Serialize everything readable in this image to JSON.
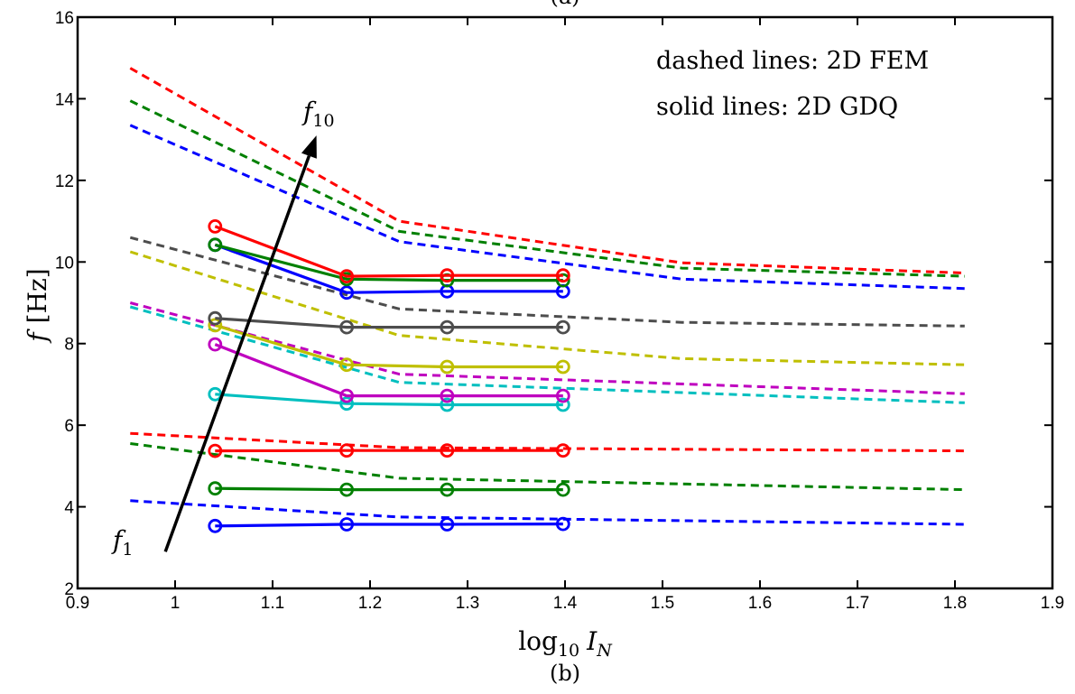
{
  "chart_data": {
    "type": "line",
    "top_label": "(a)",
    "caption": "(b)",
    "xlabel": {
      "base": "log",
      "sub": "10",
      "var": "I",
      "var_sub": "N"
    },
    "ylabel": {
      "var": "f",
      "unit": "[Hz]"
    },
    "xlim": [
      0.9,
      1.9
    ],
    "ylim": [
      2,
      16
    ],
    "xticks": [
      "0.9",
      "1",
      "1.1",
      "1.2",
      "1.3",
      "1.4",
      "1.5",
      "1.6",
      "1.7",
      "1.8",
      "1.9"
    ],
    "yticks": [
      "2",
      "4",
      "6",
      "8",
      "10",
      "12",
      "14",
      "16"
    ],
    "annotations": {
      "line1": "dashed lines: 2D FEM",
      "line2": "solid lines: 2D GDQ",
      "arrow_start_label": {
        "var": "f",
        "sub": "1"
      },
      "arrow_end_label": {
        "var": "f",
        "sub": "10"
      },
      "arrow": {
        "from": [
          0.99,
          2.9
        ],
        "to": [
          1.145,
          13.1
        ]
      }
    },
    "series": [
      {
        "style": "dashed",
        "color": "#0000ff",
        "x": [
          0.954,
          1.23,
          1.81
        ],
        "y": [
          4.15,
          3.75,
          3.57
        ]
      },
      {
        "style": "dashed",
        "color": "#008000",
        "x": [
          0.954,
          1.23,
          1.81
        ],
        "y": [
          5.55,
          4.7,
          4.42
        ]
      },
      {
        "style": "dashed",
        "color": "#ff0000",
        "x": [
          0.954,
          1.23,
          1.81
        ],
        "y": [
          5.8,
          5.45,
          5.37
        ]
      },
      {
        "style": "dashed",
        "color": "#00bfbf",
        "x": [
          0.954,
          1.23,
          1.81
        ],
        "y": [
          8.9,
          7.05,
          6.55
        ]
      },
      {
        "style": "dashed",
        "color": "#bf00bf",
        "x": [
          0.954,
          1.23,
          1.81
        ],
        "y": [
          9.0,
          7.25,
          6.77
        ]
      },
      {
        "style": "dashed",
        "color": "#bfbf00",
        "x": [
          0.954,
          1.23,
          1.52,
          1.81
        ],
        "y": [
          10.25,
          8.2,
          7.63,
          7.48
        ]
      },
      {
        "style": "dashed",
        "color": "#4d4d4d",
        "x": [
          0.954,
          1.23,
          1.52,
          1.81
        ],
        "y": [
          10.6,
          8.85,
          8.52,
          8.43
        ]
      },
      {
        "style": "dashed",
        "color": "#0000ff",
        "x": [
          0.954,
          1.23,
          1.52,
          1.81
        ],
        "y": [
          13.35,
          10.5,
          9.58,
          9.35
        ]
      },
      {
        "style": "dashed",
        "color": "#008000",
        "x": [
          0.954,
          1.23,
          1.52,
          1.81
        ],
        "y": [
          13.95,
          10.75,
          9.85,
          9.65
        ]
      },
      {
        "style": "dashed",
        "color": "#ff0000",
        "x": [
          0.954,
          1.23,
          1.52,
          1.81
        ],
        "y": [
          14.75,
          11.0,
          9.98,
          9.73
        ]
      },
      {
        "style": "solid",
        "color": "#0000ff",
        "x": [
          1.041,
          1.176,
          1.279,
          1.398
        ],
        "y": [
          3.53,
          3.57,
          3.57,
          3.58
        ]
      },
      {
        "style": "solid",
        "color": "#008000",
        "x": [
          1.041,
          1.176,
          1.279,
          1.398
        ],
        "y": [
          4.45,
          4.42,
          4.42,
          4.42
        ]
      },
      {
        "style": "solid",
        "color": "#ff0000",
        "x": [
          1.041,
          1.176,
          1.279,
          1.398
        ],
        "y": [
          5.37,
          5.38,
          5.38,
          5.38
        ]
      },
      {
        "style": "solid",
        "color": "#00bfbf",
        "x": [
          1.041,
          1.176,
          1.279,
          1.398
        ],
        "y": [
          6.76,
          6.53,
          6.5,
          6.5
        ]
      },
      {
        "style": "solid",
        "color": "#bf00bf",
        "x": [
          1.041,
          1.176,
          1.279,
          1.398
        ],
        "y": [
          7.98,
          6.72,
          6.72,
          6.72
        ]
      },
      {
        "style": "solid",
        "color": "#bfbf00",
        "x": [
          1.041,
          1.176,
          1.279,
          1.398
        ],
        "y": [
          8.45,
          7.48,
          7.43,
          7.43
        ]
      },
      {
        "style": "solid",
        "color": "#4d4d4d",
        "x": [
          1.041,
          1.176,
          1.279,
          1.398
        ],
        "y": [
          8.62,
          8.4,
          8.4,
          8.4
        ]
      },
      {
        "style": "solid",
        "color": "#0000ff",
        "x": [
          1.041,
          1.176,
          1.279,
          1.398
        ],
        "y": [
          10.42,
          9.25,
          9.28,
          9.28
        ]
      },
      {
        "style": "solid",
        "color": "#008000",
        "x": [
          1.041,
          1.176,
          1.279,
          1.398
        ],
        "y": [
          10.42,
          9.58,
          9.55,
          9.55
        ]
      },
      {
        "style": "solid",
        "color": "#ff0000",
        "x": [
          1.041,
          1.176,
          1.279,
          1.398
        ],
        "y": [
          10.87,
          9.65,
          9.67,
          9.67
        ]
      }
    ]
  }
}
